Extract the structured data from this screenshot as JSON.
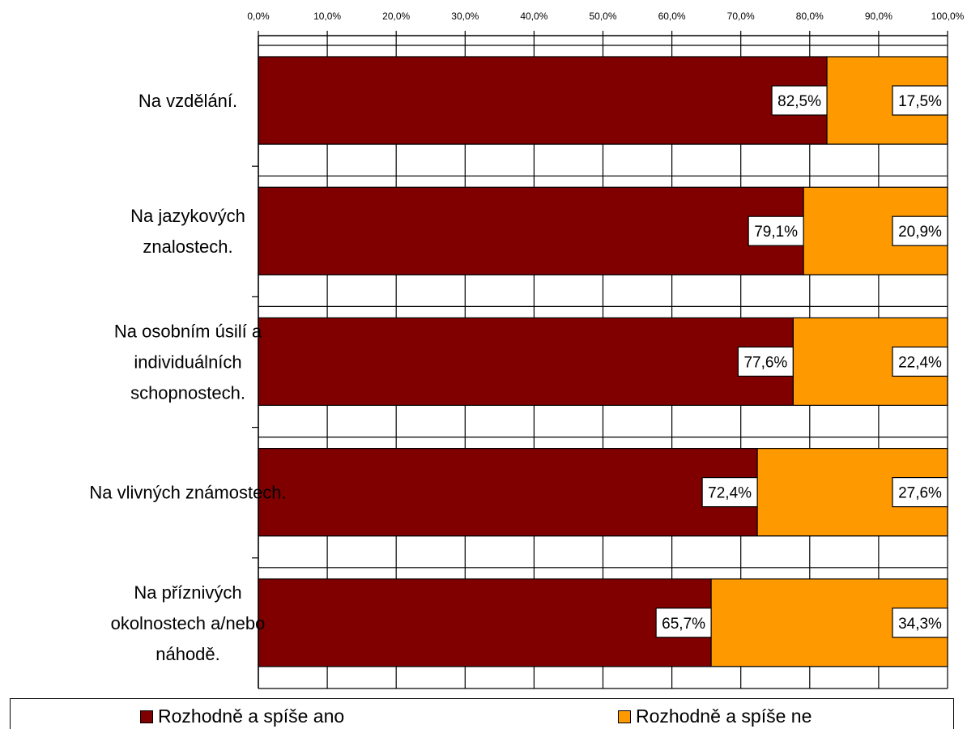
{
  "chart_data": {
    "type": "bar",
    "orientation": "horizontal",
    "stacked": "100%",
    "categories": [
      [
        "Na vzdělání."
      ],
      [
        "Na jazykových",
        "znalostech."
      ],
      [
        "Na osobním úsilí a",
        "individuálních",
        "schopnostech."
      ],
      [
        "Na vlivných známostech."
      ],
      [
        "Na příznivých",
        "okolnostech a/nebo",
        "náhodě."
      ]
    ],
    "series": [
      {
        "name": "Rozhodně a spíše ano",
        "color": "#800000",
        "values": [
          82.5,
          79.1,
          77.6,
          72.4,
          65.7
        ],
        "labels": [
          "82,5%",
          "79,1%",
          "77,6%",
          "72,4%",
          "65,7%"
        ]
      },
      {
        "name": "Rozhodně a spíše ne",
        "color": "#FF9900",
        "values": [
          17.5,
          20.9,
          22.4,
          27.6,
          34.3
        ],
        "labels": [
          "17,5%",
          "20,9%",
          "22,4%",
          "27,6%",
          "34,3%"
        ]
      }
    ],
    "xlim": [
      0,
      100
    ],
    "xticks": [
      "0,0%",
      "10,0%",
      "20,0%",
      "30,0%",
      "40,0%",
      "50,0%",
      "60,0%",
      "70,0%",
      "80,0%",
      "90,0%",
      "100,0%"
    ],
    "axis_position": "top",
    "grid": true,
    "legend_position": "bottom"
  }
}
